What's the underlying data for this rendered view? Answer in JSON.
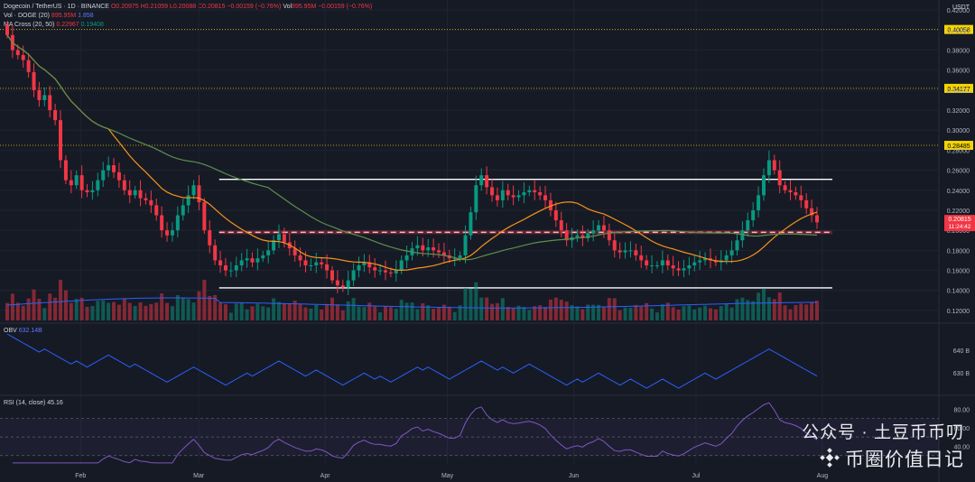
{
  "header": {
    "symbol": "Dogecoin / TetherUS · 1D · BINANCE",
    "ohlc": {
      "o": "O0.20975",
      "h": "H0.21059",
      "l": "L0.20088",
      "c": "C0.20815",
      "chg": "−0.00159 (−0.76%)"
    },
    "vol_prefix": "Vol",
    "vol": "895.95M",
    "vol_chg": "−0.00159 (−0.76%)",
    "vol_doge_label": "Vol · DOGE (20)",
    "vol_doge_a": "895.95M",
    "vol_doge_b": "1.858",
    "ma_label": "MA Cross (20, 50)",
    "ma_a": "0.22967",
    "ma_b": "0.19408"
  },
  "currency": "USDT",
  "obv_legend": {
    "label": "OBV",
    "value": "632.14B"
  },
  "rsi_legend": {
    "label": "RSI (14, close)",
    "value": "45.16"
  },
  "x_labels": [
    "Feb",
    "Mar",
    "Apr",
    "May",
    "Jun",
    "Jul",
    "Aug"
  ],
  "colors": {
    "up": "#089981",
    "down": "#f23645",
    "ma20": "#f7931a",
    "ma50": "#5d8f4e",
    "obv": "#2962ff",
    "rsi": "#7e57c2",
    "levels": "#f5d400"
  },
  "watermark": {
    "line": "公众号 · 土豆币币叨",
    "brand": "币圈价值日记"
  },
  "chart_data": [
    {
      "type": "candlestick",
      "title": "Dogecoin / TetherUS · 1D · BINANCE",
      "ylim": [
        0.11,
        0.43
      ],
      "y_ticks": [
        0.12,
        0.14,
        0.16,
        0.18,
        0.2,
        0.22,
        0.24,
        0.26,
        0.28,
        0.3,
        0.32,
        0.34,
        0.36,
        0.38,
        0.4,
        0.42
      ],
      "y_tick_labels": [
        "0.12000",
        "0.14000",
        "0.16000",
        "0.18000",
        "0.20000",
        "0.22000",
        "0.24000",
        "0.26000",
        "0.28000",
        "0.30000",
        "0.32000",
        "0.34000",
        "0.36000",
        "0.38000",
        "0.40000",
        "0.42000"
      ],
      "horizontal_levels": [
        {
          "value": 0.40058,
          "label": "0.40058",
          "style": "dotted"
        },
        {
          "value": 0.34177,
          "label": "0.34177",
          "style": "dotted"
        },
        {
          "value": 0.28485,
          "label": "0.28485",
          "style": "dotted"
        },
        {
          "value": 0.2509,
          "style": "solid",
          "from": "Mar 5",
          "to": "Aug 5"
        },
        {
          "value": 0.198,
          "style": "dashed",
          "from": "Mar 5",
          "to": "Aug 5"
        },
        {
          "value": 0.1425,
          "style": "solid",
          "from": "Mar 5",
          "to": "Aug 5"
        }
      ],
      "last_price": {
        "value": 0.20815,
        "label": "0.20815",
        "countdown": "11:24:42"
      },
      "series": [
        {
          "name": "Close",
          "values": [
            0.395,
            0.38,
            0.375,
            0.37,
            0.358,
            0.34,
            0.33,
            0.335,
            0.32,
            0.31,
            0.27,
            0.25,
            0.245,
            0.255,
            0.24,
            0.238,
            0.24,
            0.25,
            0.26,
            0.265,
            0.258,
            0.25,
            0.24,
            0.235,
            0.24,
            0.232,
            0.23,
            0.225,
            0.215,
            0.2,
            0.195,
            0.2,
            0.215,
            0.225,
            0.235,
            0.245,
            0.228,
            0.2,
            0.185,
            0.17,
            0.165,
            0.16,
            0.16,
            0.165,
            0.17,
            0.172,
            0.168,
            0.172,
            0.175,
            0.18,
            0.19,
            0.196,
            0.188,
            0.182,
            0.175,
            0.17,
            0.165,
            0.165,
            0.168,
            0.166,
            0.16,
            0.15,
            0.145,
            0.143,
            0.15,
            0.16,
            0.165,
            0.168,
            0.163,
            0.16,
            0.16,
            0.158,
            0.157,
            0.16,
            0.17,
            0.175,
            0.182,
            0.185,
            0.18,
            0.183,
            0.18,
            0.178,
            0.175,
            0.172,
            0.172,
            0.175,
            0.195,
            0.218,
            0.245,
            0.255,
            0.243,
            0.235,
            0.23,
            0.24,
            0.235,
            0.233,
            0.235,
            0.238,
            0.24,
            0.238,
            0.235,
            0.23,
            0.22,
            0.21,
            0.2,
            0.19,
            0.193,
            0.195,
            0.192,
            0.197,
            0.2,
            0.205,
            0.2,
            0.19,
            0.18,
            0.178,
            0.18,
            0.18,
            0.175,
            0.17,
            0.165,
            0.165,
            0.165,
            0.17,
            0.165,
            0.162,
            0.16,
            0.162,
            0.165,
            0.168,
            0.17,
            0.172,
            0.17,
            0.168,
            0.17,
            0.175,
            0.18,
            0.19,
            0.2,
            0.21,
            0.22,
            0.235,
            0.255,
            0.27,
            0.26,
            0.245,
            0.24,
            0.238,
            0.235,
            0.23,
            0.222,
            0.215,
            0.208
          ]
        },
        {
          "name": "MA 20",
          "period": 20
        },
        {
          "name": "MA 50",
          "period": 50
        }
      ]
    },
    {
      "type": "bar",
      "name": "Vol · DOGE (20)",
      "values_relative": true
    },
    {
      "type": "line",
      "name": "OBV",
      "value": "632.14B",
      "y_ticks": [
        "640 B",
        "630 B"
      ]
    },
    {
      "type": "line",
      "name": "RSI (14, close)",
      "value": "45.16",
      "ylim": [
        20,
        90
      ],
      "y_ticks": [
        80,
        60,
        40
      ],
      "y_tick_labels": [
        "80.00",
        "60.00",
        "40.00"
      ]
    }
  ]
}
